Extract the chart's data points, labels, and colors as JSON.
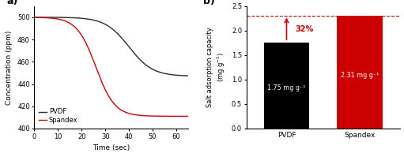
{
  "panel_a": {
    "title": "a)",
    "xlabel": "Time (sec)",
    "ylabel": "Concentration (ppm)",
    "xlim": [
      0,
      65
    ],
    "ylim": [
      400,
      510
    ],
    "yticks": [
      400,
      420,
      440,
      460,
      480,
      500
    ],
    "xticks": [
      0,
      10,
      20,
      30,
      40,
      50,
      60
    ],
    "pvdf_color": "#2b2b2b",
    "spandex_color": "#cc0000",
    "legend_labels": [
      "PVDF",
      "Spandex"
    ],
    "pvdf_params": [
      500,
      447,
      40,
      0.2
    ],
    "spandex_params": [
      500,
      411,
      26,
      0.25
    ]
  },
  "panel_b": {
    "title": "b)",
    "ylabel": "Salt adsorption capacity (mg g",
    "ylabel_sup": "-1",
    "categories": [
      "PVDF",
      "Spandex"
    ],
    "values": [
      1.75,
      2.31
    ],
    "bar_colors": [
      "#000000",
      "#cc0000"
    ],
    "ylim": [
      0,
      2.5
    ],
    "yticks": [
      0.0,
      0.5,
      1.0,
      1.5,
      2.0,
      2.5
    ],
    "bar_labels": [
      "1.75 mg g⁻¹",
      "2.31 mg g⁻¹"
    ],
    "arrow_color": "#cc0000",
    "dashed_line_color": "#cc0000",
    "percent_label": "32%",
    "dashed_y": 2.31
  },
  "background_color": "#ffffff"
}
